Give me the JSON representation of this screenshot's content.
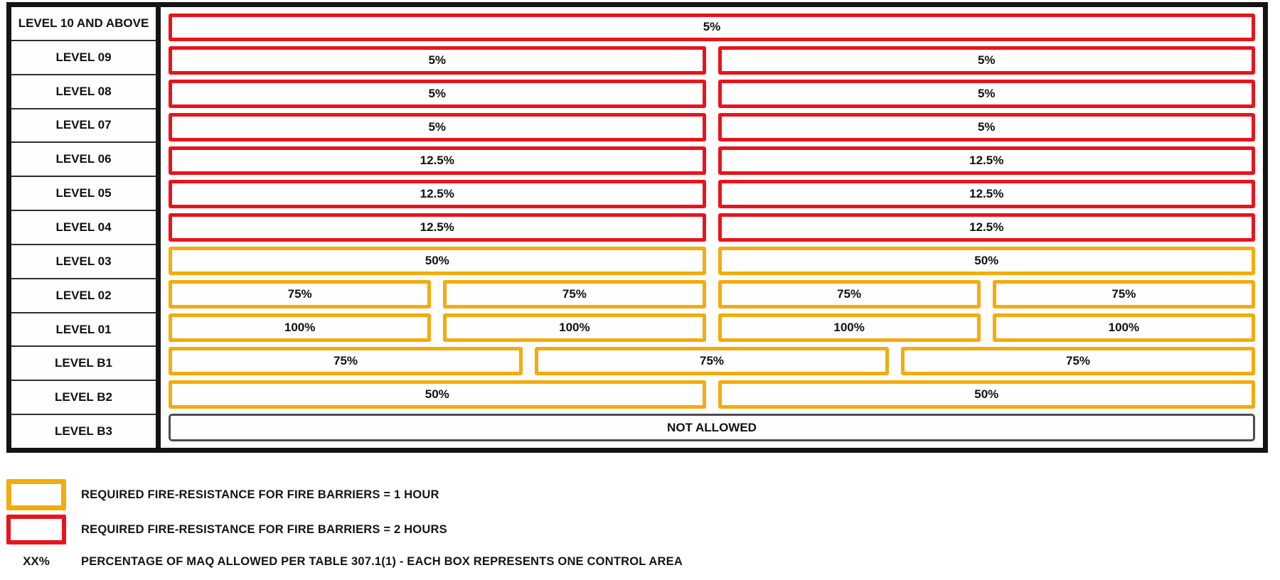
{
  "colors": {
    "one_hour": "#F4AB0D",
    "two_hours": "#E8141D",
    "none": "#4C4C4C",
    "table_border": "#141414"
  },
  "diagram": {
    "rows": [
      {
        "label": "LEVEL 10 AND ABOVE",
        "fire_barrier": "two_hours",
        "boxes": [
          "5%"
        ]
      },
      {
        "label": "LEVEL 09",
        "fire_barrier": "two_hours",
        "boxes": [
          "5%",
          "5%"
        ]
      },
      {
        "label": "LEVEL 08",
        "fire_barrier": "two_hours",
        "boxes": [
          "5%",
          "5%"
        ]
      },
      {
        "label": "LEVEL 07",
        "fire_barrier": "two_hours",
        "boxes": [
          "5%",
          "5%"
        ]
      },
      {
        "label": "LEVEL 06",
        "fire_barrier": "two_hours",
        "boxes": [
          "12.5%",
          "12.5%"
        ]
      },
      {
        "label": "LEVEL 05",
        "fire_barrier": "two_hours",
        "boxes": [
          "12.5%",
          "12.5%"
        ]
      },
      {
        "label": "LEVEL 04",
        "fire_barrier": "two_hours",
        "boxes": [
          "12.5%",
          "12.5%"
        ]
      },
      {
        "label": "LEVEL 03",
        "fire_barrier": "one_hour",
        "boxes": [
          "50%",
          "50%"
        ]
      },
      {
        "label": "LEVEL 02",
        "fire_barrier": "one_hour",
        "boxes": [
          "75%",
          "75%",
          "75%",
          "75%"
        ]
      },
      {
        "label": "LEVEL 01",
        "fire_barrier": "one_hour",
        "boxes": [
          "100%",
          "100%",
          "100%",
          "100%"
        ]
      },
      {
        "label": "LEVEL B1",
        "fire_barrier": "one_hour",
        "boxes": [
          "75%",
          "75%",
          "75%"
        ]
      },
      {
        "label": "LEVEL B2",
        "fire_barrier": "one_hour",
        "boxes": [
          "50%",
          "50%"
        ]
      },
      {
        "label": "LEVEL B3",
        "fire_barrier": "none",
        "boxes": [
          "NOT ALLOWED"
        ]
      }
    ]
  },
  "legend": {
    "items": [
      {
        "swatch": "one_hour",
        "label": "REQUIRED FIRE-RESISTANCE FOR FIRE BARRIERS = 1 HOUR"
      },
      {
        "swatch": "two_hours",
        "label": "REQUIRED FIRE-RESISTANCE FOR FIRE BARRIERS = 2 HOURS"
      },
      {
        "symbol": "XX%",
        "label": "PERCENTAGE OF MAQ ALLOWED PER TABLE 307.1(1) - EACH BOX REPRESENTS ONE CONTROL AREA"
      }
    ]
  }
}
